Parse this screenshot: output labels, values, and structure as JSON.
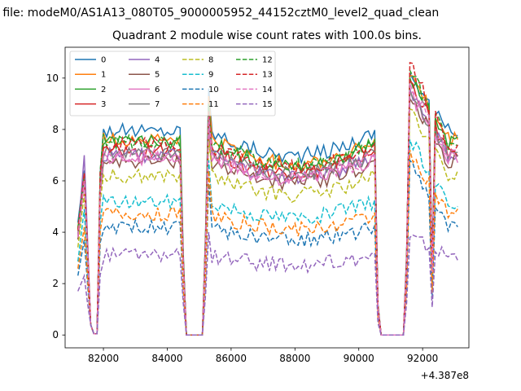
{
  "figure": {
    "suptitle": "n file: modeM0/AS1A13_080T05_9000005952_44152cztM0_level2_quad_clean"
  },
  "chart_data": {
    "type": "line",
    "title": "Quadrant 2 module wise count rates with 100.0s bins.",
    "xlabel": "",
    "ylabel": "",
    "x_offset_label": "+4.387e8",
    "xlim": [
      80800,
      93450
    ],
    "ylim": [
      -0.5,
      11.2
    ],
    "x_ticks": [
      82000,
      84000,
      86000,
      88000,
      90000,
      92000
    ],
    "y_ticks": [
      0,
      2,
      4,
      6,
      8,
      10
    ],
    "grid": false,
    "legend_position": "upper-left",
    "legend_columns": 4,
    "series": [
      {
        "name": "0",
        "color": "#1f77b4",
        "style": "solid",
        "level_mid": 7.95,
        "peak1": 6.4,
        "peak2": 9.6,
        "peak3": 10.2
      },
      {
        "name": "1",
        "color": "#ff7f0e",
        "style": "solid",
        "level_mid": 7.6,
        "peak1": 6.1,
        "peak2": 9.3,
        "peak3": 10.1
      },
      {
        "name": "2",
        "color": "#2ca02c",
        "style": "solid",
        "level_mid": 7.5,
        "peak1": 6.3,
        "peak2": 9.0,
        "peak3": 10.0
      },
      {
        "name": "3",
        "color": "#d62728",
        "style": "solid",
        "level_mid": 7.15,
        "peak1": 6.2,
        "peak2": 8.6,
        "peak3": 9.9
      },
      {
        "name": "4",
        "color": "#9467bd",
        "style": "solid",
        "level_mid": 7.0,
        "peak1": 7.0,
        "peak2": 8.3,
        "peak3": 9.6
      },
      {
        "name": "5",
        "color": "#8c564b",
        "style": "solid",
        "level_mid": 6.75,
        "peak1": 6.0,
        "peak2": 8.0,
        "peak3": 9.2
      },
      {
        "name": "6",
        "color": "#e377c2",
        "style": "solid",
        "level_mid": 6.9,
        "peak1": 6.0,
        "peak2": 8.2,
        "peak3": 9.4
      },
      {
        "name": "7",
        "color": "#7f7f7f",
        "style": "solid",
        "level_mid": 7.1,
        "peak1": 6.1,
        "peak2": 8.4,
        "peak3": 9.5
      },
      {
        "name": "8",
        "color": "#bcbd22",
        "style": "dashed",
        "level_mid": 6.2,
        "peak1": 5.5,
        "peak2": 7.6,
        "peak3": 8.8
      },
      {
        "name": "9",
        "color": "#17becf",
        "style": "dashed",
        "level_mid": 5.2,
        "peak1": 4.9,
        "peak2": 6.8,
        "peak3": 7.6
      },
      {
        "name": "10",
        "color": "#1f77b4",
        "style": "dashed",
        "level_mid": 4.2,
        "peak1": 3.7,
        "peak2": 5.9,
        "peak3": 6.8
      },
      {
        "name": "11",
        "color": "#ff7f0e",
        "style": "dashed",
        "level_mid": 4.7,
        "peak1": 4.2,
        "peak2": 6.4,
        "peak3": 7.2
      },
      {
        "name": "12",
        "color": "#2ca02c",
        "style": "dashed",
        "level_mid": 7.55,
        "peak1": 6.2,
        "peak2": 8.9,
        "peak3": 10.3
      },
      {
        "name": "13",
        "color": "#d62728",
        "style": "dashed",
        "level_mid": 7.4,
        "peak1": 6.3,
        "peak2": 8.7,
        "peak3": 10.6
      },
      {
        "name": "14",
        "color": "#e377c2",
        "style": "dashed",
        "level_mid": 7.0,
        "peak1": 6.0,
        "peak2": 8.5,
        "peak3": 9.8
      },
      {
        "name": "15",
        "color": "#9467bd",
        "style": "dashed",
        "level_mid": 3.1,
        "peak1": 2.3,
        "peak2": 4.0,
        "peak3": 3.8
      }
    ]
  }
}
